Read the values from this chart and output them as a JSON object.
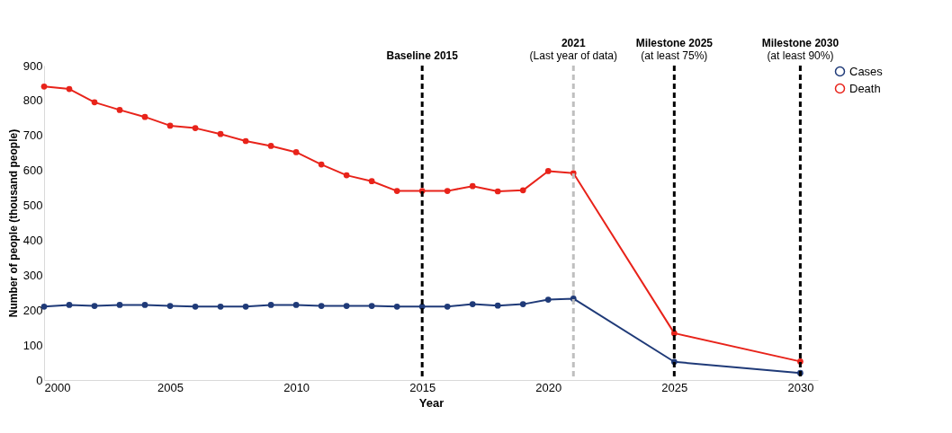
{
  "chart_data": {
    "type": "line",
    "xlabel": "Year",
    "ylabel": "Number of people (thousand people)",
    "xlim": [
      2000,
      2030.7
    ],
    "xticks": [
      2000,
      2005,
      2010,
      2015,
      2020,
      2025,
      2030
    ],
    "ylim": [
      0,
      900
    ],
    "yticks": [
      0,
      100,
      200,
      300,
      400,
      500,
      600,
      700,
      800,
      900
    ],
    "grid": false,
    "legend": "right",
    "marker": "circle",
    "line_style": "solid",
    "x": [
      2000,
      2001,
      2002,
      2003,
      2004,
      2005,
      2006,
      2007,
      2008,
      2009,
      2010,
      2011,
      2012,
      2013,
      2014,
      2015,
      2016,
      2017,
      2018,
      2019,
      2020,
      2021,
      2025,
      2030
    ],
    "series": [
      {
        "name": "Cases",
        "color": "#1f3a78",
        "values": [
          210,
          215,
          212,
          215,
          215,
          212,
          210,
          210,
          210,
          215,
          215,
          212,
          212,
          212,
          210,
          210,
          210,
          217,
          213,
          217,
          230,
          233,
          52,
          20
        ]
      },
      {
        "name": "Death",
        "color": "#e8231a",
        "values": [
          840,
          833,
          795,
          773,
          753,
          728,
          721,
          704,
          684,
          670,
          652,
          617,
          586,
          569,
          541,
          541,
          541,
          555,
          540,
          543,
          598,
          592,
          134,
          53
        ]
      }
    ],
    "ref_lines": [
      {
        "axis": "x",
        "value": 2015,
        "label": "Baseline 2015",
        "color": "#000000",
        "line_style": "dashed"
      },
      {
        "axis": "x",
        "value": 2021,
        "label": "2021\n(Last year of data)",
        "color": "#bfbfbf",
        "line_style": "dashed"
      },
      {
        "axis": "x",
        "value": 2025,
        "label": "Milestone 2025\n(at least 75%)",
        "color": "#000000",
        "line_style": "dashed"
      },
      {
        "axis": "x",
        "value": 2030,
        "label": "Milestone 2030\n(at least 90%)",
        "color": "#000000",
        "line_style": "dashed"
      }
    ]
  }
}
